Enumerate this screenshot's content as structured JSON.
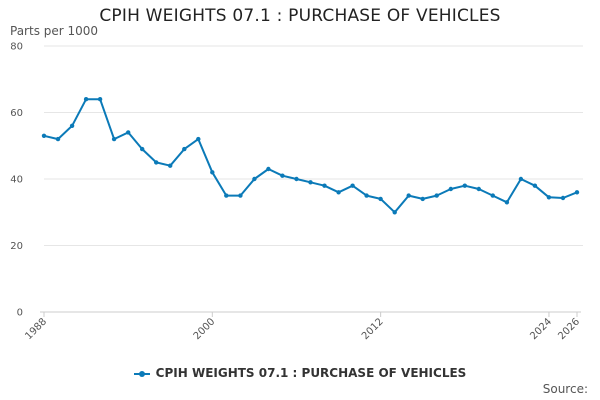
{
  "chart_data": {
    "type": "line",
    "title": "CPIH WEIGHTS 07.1 : PURCHASE OF VEHICLES",
    "ylabel": "Parts per 1000",
    "xlabel": "",
    "ylim": [
      0,
      80
    ],
    "yticks": [
      0,
      20,
      40,
      60,
      80
    ],
    "xlim": [
      1988,
      2026
    ],
    "xticks": [
      1988,
      2000,
      2012,
      2024,
      2026
    ],
    "grid": true,
    "legend_position": "bottom",
    "series": [
      {
        "name": "CPIH WEIGHTS 07.1 : PURCHASE OF VEHICLES",
        "color": "#0b7ab8",
        "x": [
          1988,
          1989,
          1990,
          1991,
          1992,
          1993,
          1994,
          1995,
          1996,
          1997,
          1998,
          1999,
          2000,
          2001,
          2002,
          2003,
          2004,
          2005,
          2006,
          2007,
          2008,
          2009,
          2010,
          2011,
          2012,
          2013,
          2014,
          2015,
          2016,
          2017,
          2018,
          2019,
          2020,
          2021,
          2022,
          2023,
          2024,
          2025,
          2026
        ],
        "values": [
          53,
          52,
          56,
          64,
          64,
          52,
          54,
          49,
          45,
          44,
          49,
          52,
          42,
          35,
          35,
          40,
          43,
          41,
          40,
          39,
          38,
          36,
          38,
          35,
          34,
          30,
          35,
          34,
          35,
          37,
          38,
          37,
          35,
          33,
          40,
          38,
          34.5,
          34.3,
          36
        ]
      }
    ]
  },
  "footer": {
    "source": "Source:"
  },
  "colors": {
    "line": "#0b7ab8",
    "grid": "#e6e6e6",
    "axis": "#cccccc"
  }
}
